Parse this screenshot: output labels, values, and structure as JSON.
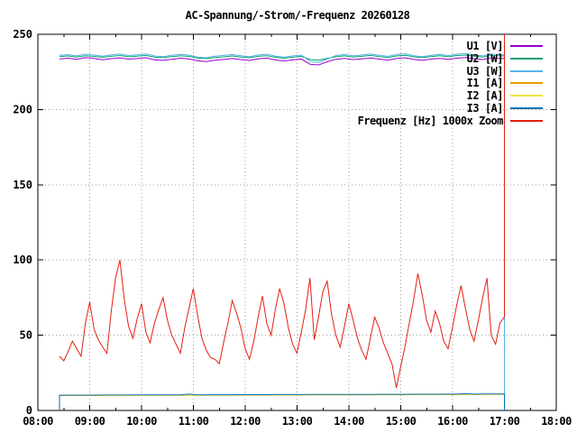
{
  "title": "AC-Spannung/-Strom/-Frequenz 20260128",
  "chart_data": {
    "type": "line",
    "title": "AC-Spannung/-Strom/-Frequenz 20260128",
    "xlabel": "",
    "ylabel": "",
    "x_range_hours": [
      8,
      18
    ],
    "ylim": [
      0,
      250
    ],
    "y_ticks": [
      0,
      50,
      100,
      150,
      200,
      250
    ],
    "x_ticks": [
      {
        "hour": 8,
        "label": "08:00"
      },
      {
        "hour": 9,
        "label": "09:00"
      },
      {
        "hour": 10,
        "label": "10:00"
      },
      {
        "hour": 11,
        "label": "11:00"
      },
      {
        "hour": 12,
        "label": "12:00"
      },
      {
        "hour": 13,
        "label": "13:00"
      },
      {
        "hour": 14,
        "label": "14:00"
      },
      {
        "hour": 15,
        "label": "15:00"
      },
      {
        "hour": 16,
        "label": "16:00"
      },
      {
        "hour": 17,
        "label": "17:00"
      },
      {
        "hour": 18,
        "label": "18:00"
      }
    ],
    "grid": true,
    "grid_style": "dotted",
    "legend_position": "top-right",
    "data_cutoff_hour": 17.0,
    "series": [
      {
        "label": "U1 [V]",
        "color": "#9400d3",
        "x_start": 8.4167,
        "x_step": 0.1667,
        "end_value": 0,
        "values": [
          233.6,
          234.1,
          233.4,
          234.5,
          234.0,
          233.1,
          233.8,
          234.3,
          233.5,
          233.9,
          234.4,
          233.0,
          232.7,
          233.4,
          234.1,
          233.6,
          232.4,
          231.9,
          232.8,
          233.3,
          233.9,
          233.2,
          232.6,
          233.7,
          234.2,
          232.9,
          232.3,
          233.0,
          233.6,
          230.1,
          229.6,
          231.8,
          233.4,
          234.0,
          233.2,
          233.7,
          234.3,
          233.5,
          232.8,
          233.9,
          234.4,
          233.3,
          232.7,
          233.5,
          234.0,
          233.4,
          234.2,
          234.6,
          233.8,
          233.2,
          234.4,
          233.9
        ]
      },
      {
        "label": "U2 [W]",
        "color": "#009e73",
        "x_start": 8.4167,
        "x_step": 0.1667,
        "end_value": 0,
        "values": [
          235.2,
          235.6,
          234.9,
          235.8,
          235.3,
          234.7,
          235.4,
          235.9,
          235.1,
          235.5,
          236.0,
          234.8,
          234.5,
          235.2,
          235.7,
          235.3,
          234.2,
          233.8,
          234.6,
          235.0,
          235.6,
          234.9,
          234.4,
          235.4,
          235.8,
          234.7,
          234.1,
          234.8,
          235.3,
          233.2,
          232.8,
          234.0,
          235.1,
          235.7,
          234.9,
          235.4,
          236.0,
          235.2,
          234.6,
          235.6,
          236.1,
          235.0,
          234.5,
          235.2,
          235.8,
          235.1,
          235.9,
          236.2,
          235.5,
          234.9,
          236.0,
          235.6
        ]
      },
      {
        "label": "U3 [W]",
        "color": "#56b4e9",
        "x_start": 8.4167,
        "x_step": 0.1667,
        "end_value": 0,
        "values": [
          236.0,
          236.5,
          235.7,
          236.8,
          236.2,
          235.5,
          236.3,
          236.9,
          235.9,
          236.4,
          237.0,
          235.6,
          235.2,
          236.1,
          236.7,
          236.2,
          234.9,
          234.4,
          235.5,
          236.0,
          236.6,
          235.8,
          235.1,
          236.3,
          236.8,
          235.5,
          234.8,
          235.7,
          236.2,
          231.9,
          231.3,
          233.5,
          235.9,
          236.6,
          235.7,
          236.3,
          237.0,
          236.1,
          235.4,
          236.5,
          237.1,
          235.8,
          235.2,
          236.0,
          236.7,
          235.9,
          236.8,
          237.2,
          236.4,
          235.7,
          236.9,
          236.4
        ]
      },
      {
        "label": "I1 [A]",
        "color": "#e69f00",
        "x_start": 8.4167,
        "x_step": 0.1667,
        "start_value": 0,
        "end_value": 0,
        "values": [
          9.85,
          9.87,
          9.88,
          9.9,
          9.91,
          9.93,
          9.94,
          9.96,
          9.97,
          9.99,
          10.0,
          10.02,
          10.03,
          10.05,
          10.06,
          10.08,
          10.09,
          10.11,
          10.12,
          10.14,
          10.15,
          10.17,
          10.18,
          10.2,
          10.21,
          10.23,
          10.24,
          10.26,
          10.27,
          10.29,
          10.3,
          10.32,
          10.33,
          10.35,
          10.36,
          10.38,
          10.39,
          10.41,
          10.42,
          10.44,
          10.45,
          10.47,
          10.48,
          10.5,
          10.51,
          10.53,
          10.54,
          10.56,
          10.57,
          10.59,
          10.6,
          10.62
        ]
      },
      {
        "label": "I2 [A]",
        "color": "#f0e442",
        "x_start": 8.4167,
        "x_step": 0.1667,
        "start_value": 0,
        "end_value": 0,
        "values": [
          9.97,
          9.99,
          10.0,
          10.02,
          10.03,
          10.05,
          10.06,
          10.08,
          10.09,
          10.11,
          10.12,
          10.14,
          10.15,
          10.17,
          10.18,
          10.2,
          10.21,
          10.23,
          10.24,
          10.26,
          10.27,
          10.29,
          10.3,
          10.32,
          10.33,
          10.35,
          10.36,
          10.38,
          10.39,
          10.41,
          10.42,
          10.44,
          10.45,
          10.47,
          10.48,
          10.5,
          10.51,
          10.53,
          10.54,
          10.56,
          10.57,
          10.59,
          10.6,
          10.62,
          10.63,
          10.65,
          10.66,
          10.68,
          10.69,
          10.71,
          10.72,
          10.74
        ]
      },
      {
        "label": "I3 [A]",
        "color": "#0072b2",
        "x_start": 8.4167,
        "x_step": 0.1667,
        "start_value": 0,
        "end_value": 0,
        "values": [
          10.15,
          10.17,
          10.18,
          10.2,
          10.21,
          10.23,
          10.24,
          10.26,
          10.27,
          10.29,
          10.3,
          10.32,
          10.33,
          10.35,
          10.36,
          10.85,
          10.39,
          10.41,
          10.42,
          10.44,
          10.45,
          10.47,
          10.48,
          10.5,
          10.51,
          10.53,
          10.54,
          10.56,
          10.57,
          10.59,
          10.6,
          10.62,
          10.63,
          10.65,
          10.66,
          10.68,
          10.69,
          10.71,
          10.72,
          10.74,
          10.75,
          10.77,
          10.78,
          10.8,
          10.81,
          10.83,
          10.84,
          11.15,
          10.87,
          10.89,
          10.9,
          10.92
        ]
      },
      {
        "label": "Frequenz [Hz] 1000x Zoom",
        "color": "#e51e10",
        "x_start": 8.4167,
        "x_step": 0.0833,
        "end_value": 250,
        "values": [
          36,
          33,
          39,
          46,
          41,
          36,
          58,
          72,
          54,
          47,
          42,
          38,
          66,
          88,
          100,
          74,
          56,
          48,
          61,
          71,
          52,
          45,
          58,
          67,
          75,
          60,
          50,
          44,
          38,
          55,
          68,
          81,
          63,
          48,
          40,
          35,
          34,
          31,
          45,
          58,
          73,
          65,
          55,
          41,
          34,
          46,
          62,
          76,
          58,
          50,
          67,
          81,
          71,
          55,
          44,
          38,
          52,
          67,
          88,
          47,
          62,
          79,
          86,
          64,
          50,
          42,
          56,
          71,
          60,
          48,
          40,
          34,
          48,
          62,
          55,
          45,
          38,
          31,
          15,
          29,
          42,
          58,
          73,
          91,
          77,
          60,
          52,
          66,
          58,
          46,
          41,
          55,
          70,
          83,
          68,
          54,
          46,
          60,
          75,
          88,
          50,
          44,
          58,
          62
        ]
      }
    ]
  },
  "layout_colors": {
    "background": "#ffffff",
    "border": "#000000",
    "grid": "#9e9e9e",
    "text": "#000000"
  }
}
